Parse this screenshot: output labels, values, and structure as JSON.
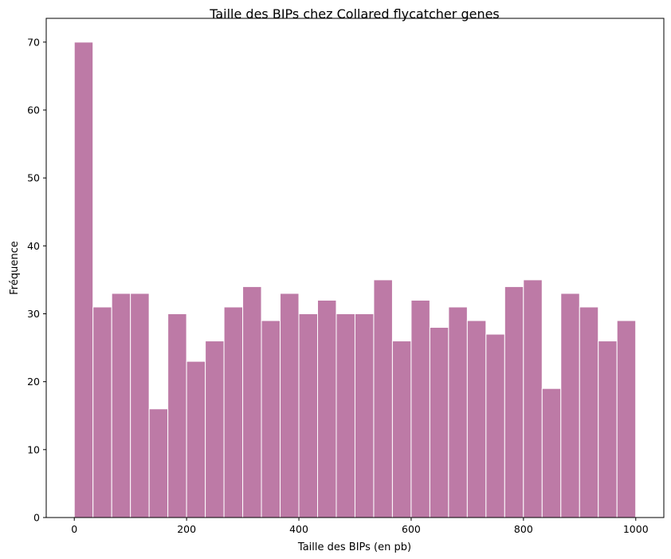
{
  "chart_data": {
    "type": "bar",
    "title": "Taille des BIPs chez Collared flycatcher genes",
    "xlabel": "Taille des BIPs (en pb)",
    "ylabel": "Fréquence",
    "bin_start": 0,
    "bin_width": 33.33,
    "values": [
      70,
      31,
      33,
      33,
      16,
      30,
      23,
      26,
      31,
      34,
      29,
      33,
      30,
      32,
      30,
      30,
      35,
      26,
      32,
      28,
      31,
      29,
      27,
      34,
      35,
      19,
      33,
      31,
      26,
      29
    ],
    "xlim": [
      -50,
      1050
    ],
    "ylim": [
      0,
      73.5
    ],
    "xticks": [
      0,
      200,
      400,
      600,
      800,
      1000
    ],
    "yticks": [
      0,
      10,
      20,
      30,
      40,
      50,
      60,
      70
    ],
    "bar_color": "#bd7aa6",
    "edge_color": "#ffffff",
    "grid": false
  }
}
